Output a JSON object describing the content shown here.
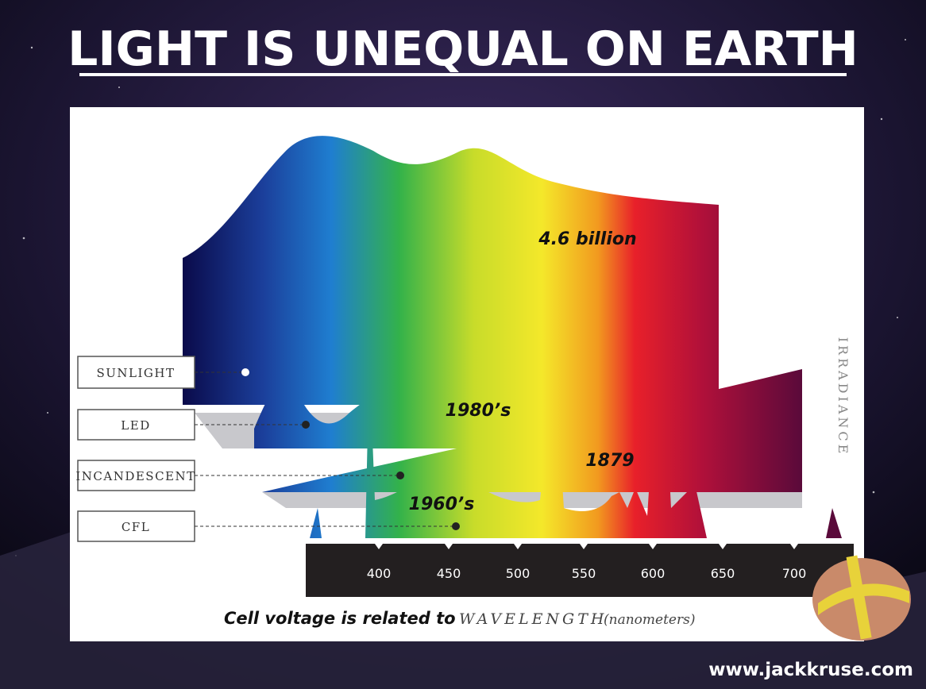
{
  "title": "LIGHT IS UNEQUAL ON EARTH",
  "sources": [
    "SUNLIGHT",
    "LED",
    "INCANDESCENT",
    "CFL"
  ],
  "annotations": [
    "4.6 billion",
    "1980’s",
    "1879",
    "1960’s"
  ],
  "axis": {
    "ticks": [
      "400",
      "450",
      "500",
      "550",
      "600",
      "650",
      "700"
    ],
    "label": "IRRADIANCE"
  },
  "caption": {
    "lead": "Cell voltage is related to",
    "axis": "WAVELENGTH",
    "unit": "(nanometers)"
  },
  "website": "www.jackkruse.com"
}
